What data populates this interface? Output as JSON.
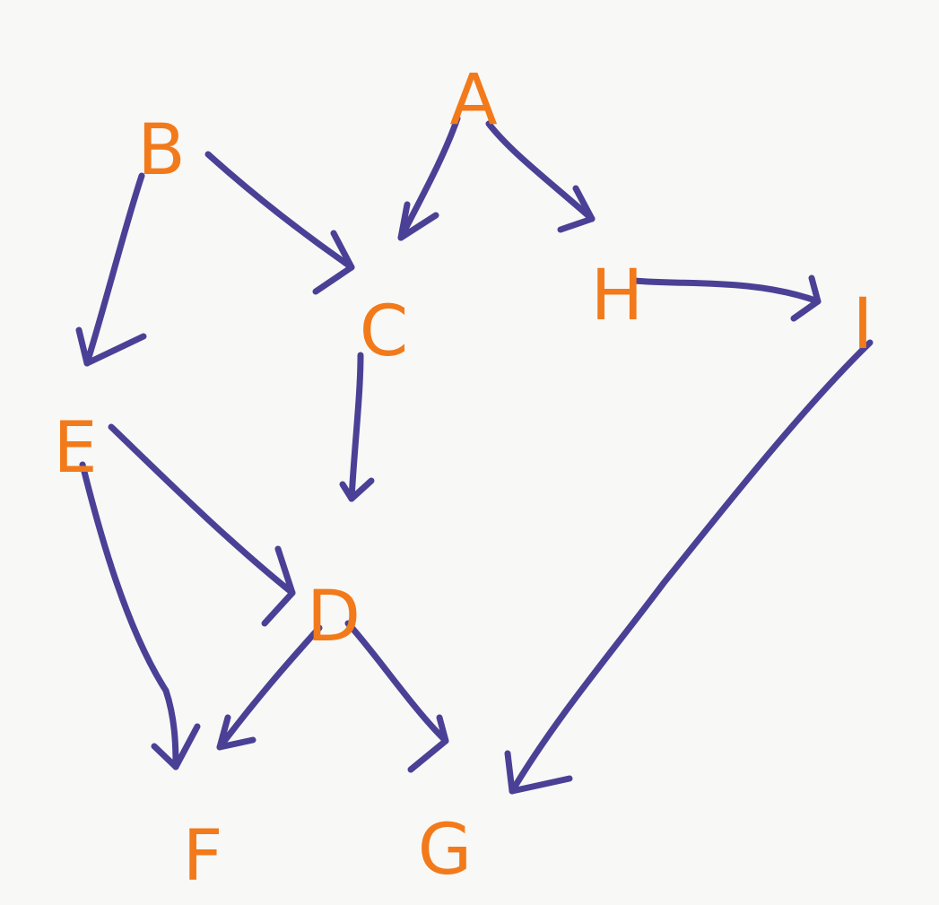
{
  "colors": {
    "node_text": "#f27a1a",
    "edge": "#4a4196",
    "background": "#f8f8f6"
  },
  "nodes": [
    {
      "id": "A",
      "label": "A"
    },
    {
      "id": "B",
      "label": "B"
    },
    {
      "id": "C",
      "label": "C"
    },
    {
      "id": "H",
      "label": "H"
    },
    {
      "id": "I",
      "label": "I"
    },
    {
      "id": "E",
      "label": "E"
    },
    {
      "id": "D",
      "label": "D"
    },
    {
      "id": "F",
      "label": "F"
    },
    {
      "id": "G",
      "label": "G"
    }
  ],
  "edges": [
    {
      "from": "A",
      "to": "C"
    },
    {
      "from": "A",
      "to": "H"
    },
    {
      "from": "B",
      "to": "C"
    },
    {
      "from": "B",
      "to": "E"
    },
    {
      "from": "H",
      "to": "I"
    },
    {
      "from": "C",
      "to": "D"
    },
    {
      "from": "E",
      "to": "D"
    },
    {
      "from": "E",
      "to": "F"
    },
    {
      "from": "D",
      "to": "F"
    },
    {
      "from": "D",
      "to": "G"
    },
    {
      "from": "I",
      "to": "G"
    }
  ]
}
